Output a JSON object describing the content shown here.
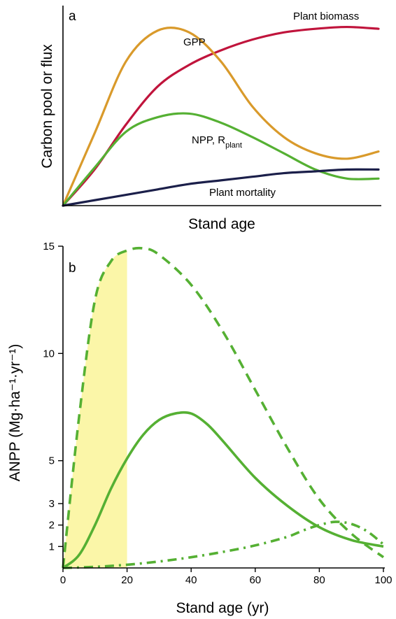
{
  "chart_data": [
    {
      "type": "line",
      "panel_label": "a",
      "xlabel": "Stand age",
      "ylabel": "Carbon pool or flux",
      "x_ticks": [],
      "y_ticks": [],
      "xlim": [
        0,
        100
      ],
      "ylim": [
        0,
        100
      ],
      "series": [
        {
          "name": "Plant biomass",
          "color": "#c0143c",
          "x": [
            0,
            10,
            20,
            30,
            40,
            50,
            60,
            70,
            80,
            90,
            100
          ],
          "y": [
            0,
            20,
            45,
            66,
            78,
            86,
            92,
            96,
            98,
            99,
            98
          ]
        },
        {
          "name": "GPP",
          "color": "#d99a2b",
          "x": [
            0,
            10,
            20,
            30,
            40,
            50,
            60,
            70,
            80,
            90,
            100
          ],
          "y": [
            0,
            40,
            80,
            97,
            96,
            80,
            55,
            38,
            29,
            26,
            30
          ]
        },
        {
          "name": "NPP, R",
          "name_subscript": "plant",
          "color": "#55b033",
          "x": [
            0,
            10,
            20,
            30,
            40,
            50,
            60,
            70,
            80,
            90,
            100
          ],
          "y": [
            0,
            21,
            41,
            49,
            51,
            46,
            38,
            29,
            20,
            15,
            15
          ]
        },
        {
          "name": "Plant mortality",
          "color": "#1b1f4a",
          "x": [
            0,
            10,
            20,
            30,
            40,
            50,
            60,
            70,
            80,
            90,
            100
          ],
          "y": [
            0,
            3,
            6,
            9,
            12,
            14,
            16,
            18,
            19,
            20,
            20
          ]
        }
      ]
    },
    {
      "type": "line",
      "panel_label": "b",
      "xlabel": "Stand age (yr)",
      "ylabel": "ANPP (Mg·ha⁻¹·yr⁻¹)",
      "xlim": [
        0,
        100
      ],
      "ylim": [
        0,
        15
      ],
      "x_ticks": [
        0,
        20,
        40,
        60,
        80,
        100
      ],
      "y_ticks": [
        1,
        2,
        3,
        5,
        10,
        15
      ],
      "shaded_region": {
        "x_start": 0,
        "x_end": 20,
        "color": "#fbf6a8"
      },
      "series": [
        {
          "style": "dashed",
          "color": "#55b033",
          "x": [
            0,
            5,
            10,
            15,
            20,
            25,
            30,
            40,
            50,
            60,
            70,
            80,
            90,
            100
          ],
          "y": [
            0,
            7,
            12.5,
            14.3,
            14.8,
            14.9,
            14.6,
            13.2,
            11.0,
            8.3,
            5.6,
            3.2,
            1.6,
            0.5
          ]
        },
        {
          "style": "solid",
          "color": "#55b033",
          "x": [
            0,
            5,
            10,
            15,
            20,
            25,
            30,
            35,
            40,
            45,
            50,
            60,
            70,
            80,
            90,
            100
          ],
          "y": [
            0,
            0.6,
            2.0,
            3.7,
            5.1,
            6.2,
            6.9,
            7.2,
            7.2,
            6.7,
            5.9,
            4.2,
            2.9,
            1.9,
            1.3,
            1.0
          ]
        },
        {
          "style": "dash-dot",
          "color": "#55b033",
          "x": [
            0,
            10,
            20,
            30,
            40,
            50,
            60,
            70,
            75,
            80,
            85,
            90,
            95,
            100
          ],
          "y": [
            0,
            0.05,
            0.15,
            0.3,
            0.5,
            0.75,
            1.05,
            1.45,
            1.75,
            2.0,
            2.15,
            2.05,
            1.7,
            1.1
          ]
        }
      ]
    }
  ]
}
